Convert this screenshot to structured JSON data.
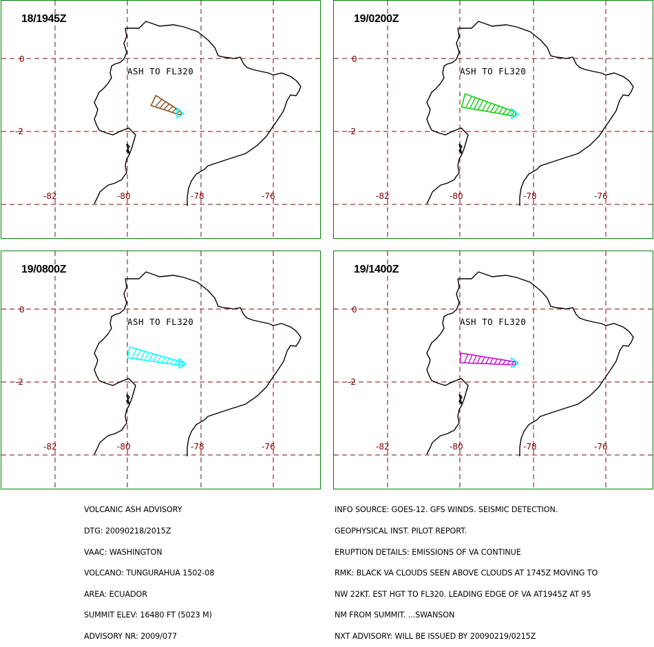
{
  "panels": [
    {
      "title": "18/1945Z",
      "ash_label": "ASH TO FL320",
      "plume_color": "#8B4513",
      "tip_color": "#00FFFF"
    },
    {
      "title": "19/0200Z",
      "ash_label": "ASH TO FL320",
      "plume_color": "#00CC00",
      "tip_color": "#00FFFF"
    },
    {
      "title": "19/0800Z",
      "ash_label": "ASH TO FL320",
      "plume_color": "#00FFFF",
      "tip_color": "#00FFFF"
    },
    {
      "title": "19/1400Z",
      "ash_label": "ASH TO FL320",
      "plume_color": "#CC00CC",
      "tip_color": "#00FFFF"
    }
  ],
  "grid": {
    "lat_labels": [
      "0",
      "-2"
    ],
    "lon_labels": [
      "-82",
      "-80",
      "-78",
      "-76"
    ],
    "line_color": "#800000",
    "coast_color": "#000000",
    "frame_color": "#008000"
  },
  "footer": {
    "left": [
      "VOLCANIC ASH ADVISORY",
      "DTG: 20090218/2015Z",
      "VAAC: WASHINGTON",
      "VOLCANO: TUNGURAHUA 1502-08",
      "AREA: ECUADOR",
      "SUMMIT ELEV: 16480 FT (5023 M)",
      "ADVISORY NR: 2009/077"
    ],
    "right": [
      "INFO SOURCE: GOES-12. GFS WINDS. SEISMIC DETECTION.",
      "GEOPHYSICAL INST. PILOT REPORT.",
      "ERUPTION DETAILS: EMISSIONS OF VA CONTINUE",
      "RMK: BLACK VA CLOUDS SEEN ABOVE CLOUDS AT 1745Z MOVING TO",
      "NW 22KT. EST HGT TO FL320. LEADING EDGE OF VA AT1945Z AT 95",
      "NM FROM SUMMIT. ...SWANSON",
      "NXT ADVISORY: WILL BE ISSUED BY 20090219/0215Z"
    ]
  }
}
